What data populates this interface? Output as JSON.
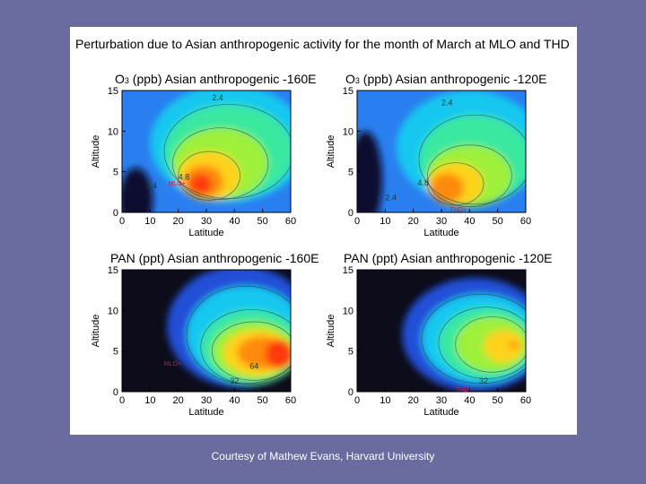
{
  "slide": {
    "title": "Perturbation due to Asian anthropogenic activity for the month of March at MLO and THD",
    "credit": "Courtesy of Mathew Evans, Harvard University"
  },
  "chart_data": [
    {
      "type": "heatmap",
      "title_species": "O",
      "title_sub": "3",
      "title_rest": " (ppb) Asian anthropogenic  -160E",
      "xlabel": "Latitude",
      "ylabel": "Altitude",
      "xlim": [
        0,
        60
      ],
      "ylim": [
        0,
        15
      ],
      "xticks": [
        0,
        10,
        20,
        30,
        40,
        50,
        60
      ],
      "yticks": [
        0,
        5,
        10,
        15
      ],
      "contour_labels": [
        {
          "text": "2.4",
          "x": 34,
          "y": 13.8
        },
        {
          "text": "2.4",
          "x": 10.5,
          "y": 3.0
        },
        {
          "text": "4.8",
          "x": 22,
          "y": 4.0
        }
      ],
      "site_markers": [
        {
          "text": "MLO",
          "x": 19.5,
          "y": 3.3
        }
      ]
    },
    {
      "type": "heatmap",
      "title_species": "O",
      "title_sub": "3",
      "title_rest": " (ppb) Asian anthropogenic  -120E",
      "xlabel": "Latitude",
      "ylabel": "Altitude",
      "xlim": [
        0,
        60
      ],
      "ylim": [
        0,
        15
      ],
      "xticks": [
        0,
        10,
        20,
        30,
        40,
        50,
        60
      ],
      "yticks": [
        0,
        5,
        10,
        15
      ],
      "contour_labels": [
        {
          "text": "2.4",
          "x": 32,
          "y": 13.2
        },
        {
          "text": "2.4",
          "x": 12,
          "y": 1.5
        },
        {
          "text": "4.8",
          "x": 23.5,
          "y": 3.3
        }
      ],
      "site_markers": [
        {
          "text": "THD",
          "x": 36,
          "y": 0.1
        }
      ]
    },
    {
      "type": "heatmap",
      "title_species": "PAN",
      "title_sub": "",
      "title_rest": " (ppt) Asian anthropogenic  -160E",
      "xlabel": "Latitude",
      "ylabel": "Altitude",
      "xlim": [
        0,
        60
      ],
      "ylim": [
        0,
        15
      ],
      "xticks": [
        0,
        10,
        20,
        30,
        40,
        50,
        60
      ],
      "yticks": [
        0,
        5,
        10,
        15
      ],
      "contour_labels": [
        {
          "text": "64",
          "x": 47,
          "y": 2.8
        },
        {
          "text": "32",
          "x": 40,
          "y": 1.0
        }
      ],
      "site_markers": [
        {
          "text": "MLO",
          "x": 18,
          "y": 3.2
        }
      ]
    },
    {
      "type": "heatmap",
      "title_species": "PAN",
      "title_sub": "",
      "title_rest": " (ppt) Asian anthropogenic  -120E",
      "xlabel": "Latitude",
      "ylabel": "Altitude",
      "xlim": [
        0,
        60
      ],
      "ylim": [
        0,
        15
      ],
      "xticks": [
        0,
        10,
        20,
        30,
        40,
        50,
        60
      ],
      "yticks": [
        0,
        5,
        10,
        15
      ],
      "contour_labels": [
        {
          "text": "32",
          "x": 45,
          "y": 1.0
        }
      ],
      "site_markers": [
        {
          "text": "THD",
          "x": 38,
          "y": 0.0
        }
      ]
    }
  ]
}
